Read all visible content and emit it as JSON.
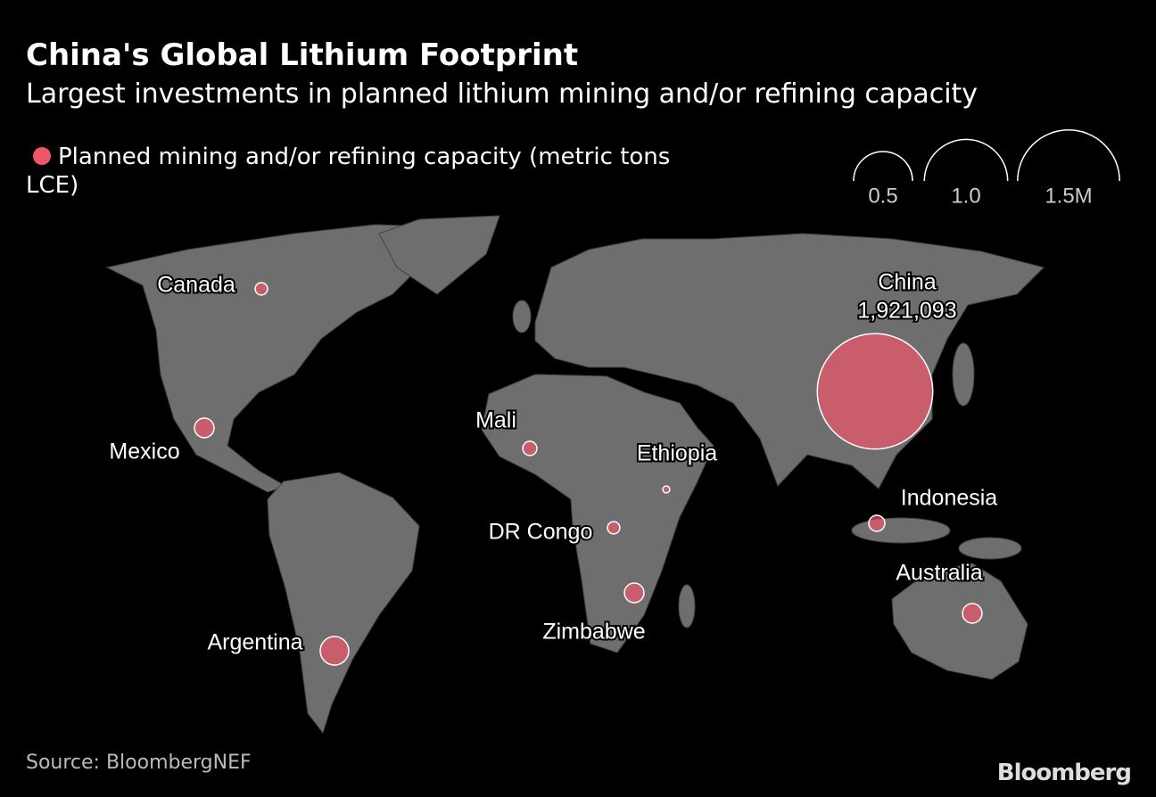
{
  "chart_data": {
    "type": "bubble-map",
    "title": "China's Global Lithium Footprint",
    "subtitle": "Largest investments in planned lithium mining and/or refining capacity",
    "legend_label": "Planned mining and/or refining capacity (metric tons LCE)",
    "color": "#f0566a",
    "size_legend": [
      {
        "value": 500000,
        "label": "0.5"
      },
      {
        "value": 1000000,
        "label": "1.0"
      },
      {
        "value": 1500000,
        "label": "1.5M"
      }
    ],
    "categories": [
      "Canada",
      "Mexico",
      "Mali",
      "Ethiopia",
      "DR Congo",
      "Zimbabwe",
      "Argentina",
      "China",
      "Indonesia",
      "Australia"
    ],
    "values": [
      22000,
      55000,
      29000,
      7000,
      22000,
      55000,
      117000,
      1921093,
      37000,
      55000
    ],
    "value_labels": [
      null,
      null,
      null,
      null,
      null,
      null,
      null,
      "1,921,093",
      null,
      null
    ],
    "source": "Source: BloombergNEF",
    "brand": "Bloomberg"
  }
}
